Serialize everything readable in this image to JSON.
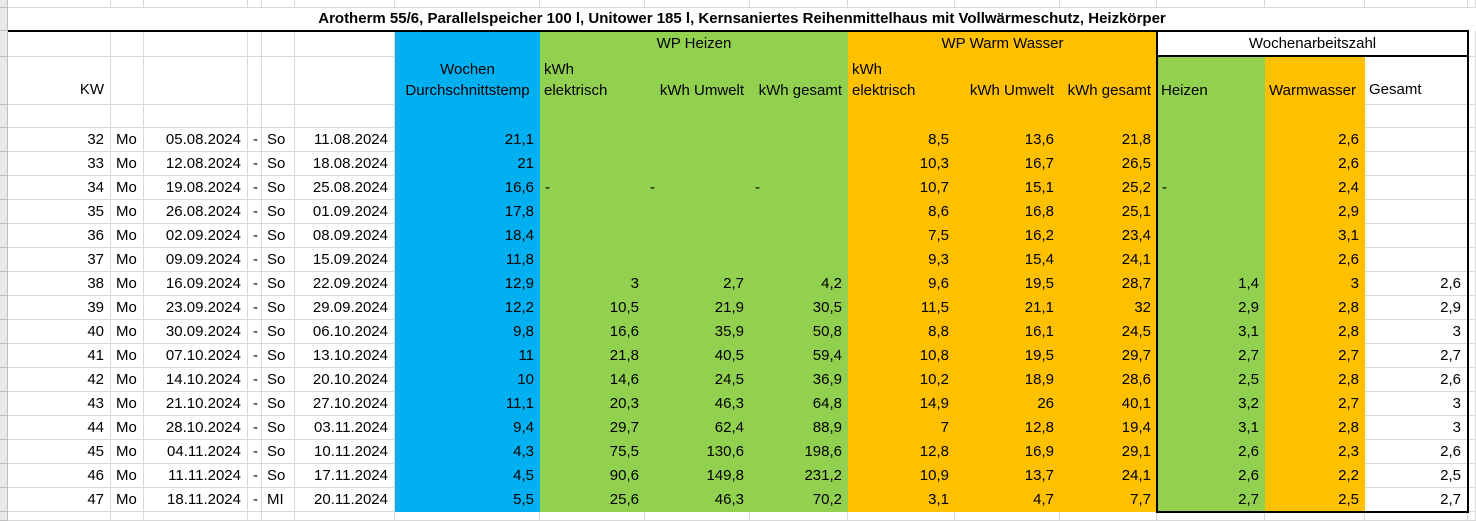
{
  "title": "Arotherm 55/6, Parallelspeicher 100 l, Unitower 185 l, Kernsaniertes Reihenmittelhaus mit Vollwärmeschutz, Heizkörper",
  "colors": {
    "temp_column": "#00b0f0",
    "heizen": "#92d050",
    "warmwasser": "#ffc000",
    "gridline": "#d8d8d8"
  },
  "bands": {
    "heizen": "WP Heizen",
    "warm_wasser": "WP Warm Wasser",
    "wochenarbeitszahl": "Wochenarbeitszahl"
  },
  "column_headers": {
    "kw": "KW",
    "temp_line1": "Wochen",
    "temp_line2": "Durchschnittstemp",
    "kwh_line1": "kWh",
    "kwh_line2": "elektrisch",
    "kwh_umwelt": "kWh Umwelt",
    "kwh_gesamt": "kWh gesamt",
    "waz_heizen": "Heizen",
    "waz_warmwasser": "Warmwasser",
    "waz_gesamt": "Gesamt"
  },
  "range_separator": "-",
  "rows": [
    {
      "kw": "32",
      "start_day": "Mo",
      "start_date": "05.08.2024",
      "end_day": "So",
      "end_date": "11.08.2024",
      "temp": "21,1",
      "heizen": {
        "elektrisch": "",
        "umwelt": "",
        "gesamt": ""
      },
      "warmwasser": {
        "elektrisch": "8,5",
        "umwelt": "13,6",
        "gesamt": "21,8"
      },
      "waz": {
        "heizen": "",
        "warmwasser": "2,6",
        "gesamt": ""
      }
    },
    {
      "kw": "33",
      "start_day": "Mo",
      "start_date": "12.08.2024",
      "end_day": "So",
      "end_date": "18.08.2024",
      "temp": "21",
      "heizen": {
        "elektrisch": "",
        "umwelt": "",
        "gesamt": ""
      },
      "warmwasser": {
        "elektrisch": "10,3",
        "umwelt": "16,7",
        "gesamt": "26,5"
      },
      "waz": {
        "heizen": "",
        "warmwasser": "2,6",
        "gesamt": ""
      }
    },
    {
      "kw": "34",
      "start_day": "Mo",
      "start_date": "19.08.2024",
      "end_day": "So",
      "end_date": "25.08.2024",
      "temp": "16,6",
      "heizen": {
        "elektrisch": "-",
        "umwelt": "-",
        "gesamt": "-"
      },
      "warmwasser": {
        "elektrisch": "10,7",
        "umwelt": "15,1",
        "gesamt": "25,2"
      },
      "waz": {
        "heizen": "-",
        "warmwasser": "2,4",
        "gesamt": ""
      }
    },
    {
      "kw": "35",
      "start_day": "Mo",
      "start_date": "26.08.2024",
      "end_day": "So",
      "end_date": "01.09.2024",
      "temp": "17,8",
      "heizen": {
        "elektrisch": "",
        "umwelt": "",
        "gesamt": ""
      },
      "warmwasser": {
        "elektrisch": "8,6",
        "umwelt": "16,8",
        "gesamt": "25,1"
      },
      "waz": {
        "heizen": "",
        "warmwasser": "2,9",
        "gesamt": ""
      }
    },
    {
      "kw": "36",
      "start_day": "Mo",
      "start_date": "02.09.2024",
      "end_day": "So",
      "end_date": "08.09.2024",
      "temp": "18,4",
      "heizen": {
        "elektrisch": "",
        "umwelt": "",
        "gesamt": ""
      },
      "warmwasser": {
        "elektrisch": "7,5",
        "umwelt": "16,2",
        "gesamt": "23,4"
      },
      "waz": {
        "heizen": "",
        "warmwasser": "3,1",
        "gesamt": ""
      }
    },
    {
      "kw": "37",
      "start_day": "Mo",
      "start_date": "09.09.2024",
      "end_day": "So",
      "end_date": "15.09.2024",
      "temp": "11,8",
      "heizen": {
        "elektrisch": "",
        "umwelt": "",
        "gesamt": ""
      },
      "warmwasser": {
        "elektrisch": "9,3",
        "umwelt": "15,4",
        "gesamt": "24,1"
      },
      "waz": {
        "heizen": "",
        "warmwasser": "2,6",
        "gesamt": ""
      }
    },
    {
      "kw": "38",
      "start_day": "Mo",
      "start_date": "16.09.2024",
      "end_day": "So",
      "end_date": "22.09.2024",
      "temp": "12,9",
      "heizen": {
        "elektrisch": "3",
        "umwelt": "2,7",
        "gesamt": "4,2"
      },
      "warmwasser": {
        "elektrisch": "9,6",
        "umwelt": "19,5",
        "gesamt": "28,7"
      },
      "waz": {
        "heizen": "1,4",
        "warmwasser": "3",
        "gesamt": "2,6"
      }
    },
    {
      "kw": "39",
      "start_day": "Mo",
      "start_date": "23.09.2024",
      "end_day": "So",
      "end_date": "29.09.2024",
      "temp": "12,2",
      "heizen": {
        "elektrisch": "10,5",
        "umwelt": "21,9",
        "gesamt": "30,5"
      },
      "warmwasser": {
        "elektrisch": "11,5",
        "umwelt": "21,1",
        "gesamt": "32"
      },
      "waz": {
        "heizen": "2,9",
        "warmwasser": "2,8",
        "gesamt": "2,9"
      }
    },
    {
      "kw": "40",
      "start_day": "Mo",
      "start_date": "30.09.2024",
      "end_day": "So",
      "end_date": "06.10.2024",
      "temp": "9,8",
      "heizen": {
        "elektrisch": "16,6",
        "umwelt": "35,9",
        "gesamt": "50,8"
      },
      "warmwasser": {
        "elektrisch": "8,8",
        "umwelt": "16,1",
        "gesamt": "24,5"
      },
      "waz": {
        "heizen": "3,1",
        "warmwasser": "2,8",
        "gesamt": "3"
      }
    },
    {
      "kw": "41",
      "start_day": "Mo",
      "start_date": "07.10.2024",
      "end_day": "So",
      "end_date": "13.10.2024",
      "temp": "11",
      "heizen": {
        "elektrisch": "21,8",
        "umwelt": "40,5",
        "gesamt": "59,4"
      },
      "warmwasser": {
        "elektrisch": "10,8",
        "umwelt": "19,5",
        "gesamt": "29,7"
      },
      "waz": {
        "heizen": "2,7",
        "warmwasser": "2,7",
        "gesamt": "2,7"
      }
    },
    {
      "kw": "42",
      "start_day": "Mo",
      "start_date": "14.10.2024",
      "end_day": "So",
      "end_date": "20.10.2024",
      "temp": "10",
      "heizen": {
        "elektrisch": "14,6",
        "umwelt": "24,5",
        "gesamt": "36,9"
      },
      "warmwasser": {
        "elektrisch": "10,2",
        "umwelt": "18,9",
        "gesamt": "28,6"
      },
      "waz": {
        "heizen": "2,5",
        "warmwasser": "2,8",
        "gesamt": "2,6"
      }
    },
    {
      "kw": "43",
      "start_day": "Mo",
      "start_date": "21.10.2024",
      "end_day": "So",
      "end_date": "27.10.2024",
      "temp": "11,1",
      "heizen": {
        "elektrisch": "20,3",
        "umwelt": "46,3",
        "gesamt": "64,8"
      },
      "warmwasser": {
        "elektrisch": "14,9",
        "umwelt": "26",
        "gesamt": "40,1"
      },
      "waz": {
        "heizen": "3,2",
        "warmwasser": "2,7",
        "gesamt": "3"
      }
    },
    {
      "kw": "44",
      "start_day": "Mo",
      "start_date": "28.10.2024",
      "end_day": "So",
      "end_date": "03.11.2024",
      "temp": "9,4",
      "heizen": {
        "elektrisch": "29,7",
        "umwelt": "62,4",
        "gesamt": "88,9"
      },
      "warmwasser": {
        "elektrisch": "7",
        "umwelt": "12,8",
        "gesamt": "19,4"
      },
      "waz": {
        "heizen": "3,1",
        "warmwasser": "2,8",
        "gesamt": "3"
      }
    },
    {
      "kw": "45",
      "start_day": "Mo",
      "start_date": "04.11.2024",
      "end_day": "So",
      "end_date": "10.11.2024",
      "temp": "4,3",
      "heizen": {
        "elektrisch": "75,5",
        "umwelt": "130,6",
        "gesamt": "198,6"
      },
      "warmwasser": {
        "elektrisch": "12,8",
        "umwelt": "16,9",
        "gesamt": "29,1"
      },
      "waz": {
        "heizen": "2,6",
        "warmwasser": "2,3",
        "gesamt": "2,6"
      }
    },
    {
      "kw": "46",
      "start_day": "Mo",
      "start_date": "11.11.2024",
      "end_day": "So",
      "end_date": "17.11.2024",
      "temp": "4,5",
      "heizen": {
        "elektrisch": "90,6",
        "umwelt": "149,8",
        "gesamt": "231,2"
      },
      "warmwasser": {
        "elektrisch": "10,9",
        "umwelt": "13,7",
        "gesamt": "24,1"
      },
      "waz": {
        "heizen": "2,6",
        "warmwasser": "2,2",
        "gesamt": "2,5"
      }
    },
    {
      "kw": "47",
      "start_day": "Mo",
      "start_date": "18.11.2024",
      "end_day": "MI",
      "end_date": "20.11.2024",
      "temp": "5,5",
      "heizen": {
        "elektrisch": "25,6",
        "umwelt": "46,3",
        "gesamt": "70,2"
      },
      "warmwasser": {
        "elektrisch": "3,1",
        "umwelt": "4,7",
        "gesamt": "7,7"
      },
      "waz": {
        "heizen": "2,7",
        "warmwasser": "2,5",
        "gesamt": "2,7"
      }
    }
  ]
}
